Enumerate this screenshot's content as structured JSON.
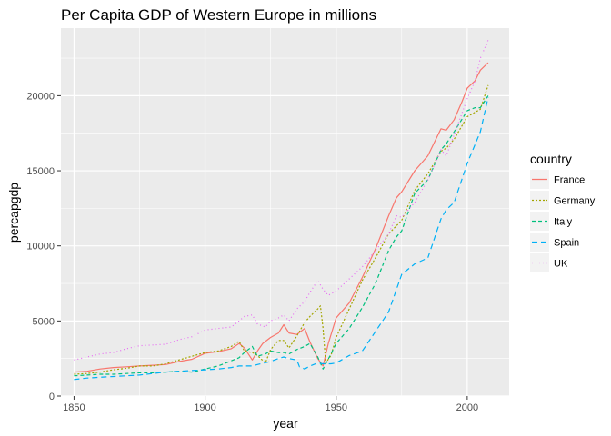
{
  "chart_data": {
    "type": "line",
    "title": "Per Capita GDP of Western Europe in millions",
    "xlabel": "year",
    "ylabel": "percapgdp",
    "xlim": [
      1845,
      2016
    ],
    "ylim": [
      0,
      24500
    ],
    "x_ticks": [
      1850,
      1900,
      1950,
      2000
    ],
    "x_tick_labels": [
      "1850",
      "1900",
      "1950",
      "2000"
    ],
    "y_ticks": [
      0,
      5000,
      10000,
      15000,
      20000
    ],
    "y_tick_labels": [
      "0",
      "5000",
      "10000",
      "15000",
      "20000"
    ],
    "grid": true,
    "legend": {
      "title": "country",
      "placement": "right"
    },
    "background": "#ebebeb",
    "series": [
      {
        "name": "France",
        "color": "#f8766d",
        "dash": "solid",
        "points": [
          [
            1850,
            1600
          ],
          [
            1855,
            1650
          ],
          [
            1860,
            1800
          ],
          [
            1865,
            1900
          ],
          [
            1870,
            1950
          ],
          [
            1875,
            2000
          ],
          [
            1880,
            2050
          ],
          [
            1885,
            2100
          ],
          [
            1890,
            2300
          ],
          [
            1895,
            2450
          ],
          [
            1900,
            2850
          ],
          [
            1905,
            2950
          ],
          [
            1910,
            3150
          ],
          [
            1913,
            3500
          ],
          [
            1915,
            3200
          ],
          [
            1918,
            2400
          ],
          [
            1920,
            3000
          ],
          [
            1922,
            3500
          ],
          [
            1925,
            3900
          ],
          [
            1928,
            4200
          ],
          [
            1930,
            4750
          ],
          [
            1932,
            4200
          ],
          [
            1935,
            4100
          ],
          [
            1938,
            4500
          ],
          [
            1940,
            3600
          ],
          [
            1943,
            2500
          ],
          [
            1945,
            2000
          ],
          [
            1947,
            3500
          ],
          [
            1950,
            5200
          ],
          [
            1955,
            6200
          ],
          [
            1960,
            7900
          ],
          [
            1965,
            9800
          ],
          [
            1970,
            12000
          ],
          [
            1973,
            13200
          ],
          [
            1975,
            13600
          ],
          [
            1980,
            15000
          ],
          [
            1985,
            16000
          ],
          [
            1990,
            17800
          ],
          [
            1992,
            17700
          ],
          [
            1995,
            18400
          ],
          [
            1998,
            19600
          ],
          [
            2000,
            20500
          ],
          [
            2003,
            21000
          ],
          [
            2005,
            21700
          ],
          [
            2008,
            22200
          ]
        ]
      },
      {
        "name": "Germany",
        "color": "#a3a500",
        "dash": "short",
        "points": [
          [
            1850,
            1450
          ],
          [
            1855,
            1500
          ],
          [
            1860,
            1600
          ],
          [
            1865,
            1750
          ],
          [
            1870,
            1850
          ],
          [
            1875,
            2000
          ],
          [
            1880,
            2000
          ],
          [
            1885,
            2150
          ],
          [
            1890,
            2400
          ],
          [
            1895,
            2650
          ],
          [
            1900,
            2900
          ],
          [
            1905,
            3000
          ],
          [
            1910,
            3300
          ],
          [
            1913,
            3650
          ],
          [
            1915,
            3000
          ],
          [
            1918,
            2900
          ],
          [
            1920,
            2700
          ],
          [
            1923,
            2200
          ],
          [
            1925,
            3100
          ],
          [
            1928,
            3700
          ],
          [
            1930,
            3700
          ],
          [
            1932,
            3200
          ],
          [
            1935,
            4000
          ],
          [
            1938,
            4900
          ],
          [
            1940,
            5300
          ],
          [
            1943,
            5800
          ],
          [
            1944,
            6000
          ],
          [
            1945,
            4500
          ],
          [
            1946,
            2200
          ],
          [
            1948,
            2700
          ],
          [
            1950,
            3900
          ],
          [
            1955,
            5800
          ],
          [
            1960,
            7700
          ],
          [
            1965,
            9200
          ],
          [
            1970,
            10800
          ],
          [
            1975,
            11700
          ],
          [
            1980,
            13700
          ],
          [
            1985,
            14800
          ],
          [
            1990,
            16300
          ],
          [
            1992,
            16500
          ],
          [
            1995,
            17100
          ],
          [
            2000,
            18600
          ],
          [
            2005,
            19100
          ],
          [
            2008,
            20700
          ]
        ]
      },
      {
        "name": "Italy",
        "color": "#00bf7d",
        "dash": "medium",
        "points": [
          [
            1850,
            1350
          ],
          [
            1855,
            1400
          ],
          [
            1860,
            1450
          ],
          [
            1865,
            1450
          ],
          [
            1870,
            1500
          ],
          [
            1875,
            1550
          ],
          [
            1880,
            1550
          ],
          [
            1885,
            1600
          ],
          [
            1890,
            1650
          ],
          [
            1895,
            1600
          ],
          [
            1900,
            1800
          ],
          [
            1905,
            2000
          ],
          [
            1910,
            2350
          ],
          [
            1913,
            2550
          ],
          [
            1915,
            2900
          ],
          [
            1918,
            3300
          ],
          [
            1920,
            2650
          ],
          [
            1923,
            2800
          ],
          [
            1925,
            3000
          ],
          [
            1928,
            2900
          ],
          [
            1930,
            2900
          ],
          [
            1932,
            2800
          ],
          [
            1935,
            3100
          ],
          [
            1938,
            3300
          ],
          [
            1940,
            3500
          ],
          [
            1943,
            2600
          ],
          [
            1945,
            1800
          ],
          [
            1948,
            2800
          ],
          [
            1950,
            3500
          ],
          [
            1955,
            4500
          ],
          [
            1960,
            5900
          ],
          [
            1965,
            7500
          ],
          [
            1970,
            9700
          ],
          [
            1973,
            10600
          ],
          [
            1975,
            11000
          ],
          [
            1980,
            13500
          ],
          [
            1985,
            14400
          ],
          [
            1990,
            16400
          ],
          [
            1992,
            16800
          ],
          [
            1995,
            17600
          ],
          [
            2000,
            19000
          ],
          [
            2003,
            19200
          ],
          [
            2005,
            19200
          ],
          [
            2008,
            20000
          ]
        ]
      },
      {
        "name": "Spain",
        "color": "#00b0f6",
        "dash": "long",
        "points": [
          [
            1850,
            1100
          ],
          [
            1855,
            1200
          ],
          [
            1860,
            1250
          ],
          [
            1865,
            1300
          ],
          [
            1870,
            1350
          ],
          [
            1875,
            1400
          ],
          [
            1880,
            1500
          ],
          [
            1885,
            1600
          ],
          [
            1890,
            1650
          ],
          [
            1895,
            1700
          ],
          [
            1900,
            1750
          ],
          [
            1905,
            1800
          ],
          [
            1910,
            1900
          ],
          [
            1913,
            2000
          ],
          [
            1918,
            2000
          ],
          [
            1920,
            2100
          ],
          [
            1925,
            2300
          ],
          [
            1928,
            2500
          ],
          [
            1930,
            2600
          ],
          [
            1932,
            2500
          ],
          [
            1935,
            2400
          ],
          [
            1936,
            1950
          ],
          [
            1938,
            1800
          ],
          [
            1940,
            2000
          ],
          [
            1943,
            2200
          ],
          [
            1945,
            2150
          ],
          [
            1948,
            2150
          ],
          [
            1950,
            2200
          ],
          [
            1955,
            2700
          ],
          [
            1960,
            3000
          ],
          [
            1965,
            4300
          ],
          [
            1970,
            5600
          ],
          [
            1975,
            8100
          ],
          [
            1980,
            8800
          ],
          [
            1985,
            9200
          ],
          [
            1990,
            11800
          ],
          [
            1992,
            12400
          ],
          [
            1995,
            12900
          ],
          [
            2000,
            15500
          ],
          [
            2005,
            17600
          ],
          [
            2008,
            19900
          ]
        ]
      },
      {
        "name": "UK",
        "color": "#e76bf3",
        "dash": "dotted",
        "points": [
          [
            1850,
            2400
          ],
          [
            1855,
            2600
          ],
          [
            1860,
            2800
          ],
          [
            1865,
            2900
          ],
          [
            1870,
            3150
          ],
          [
            1875,
            3350
          ],
          [
            1880,
            3400
          ],
          [
            1885,
            3450
          ],
          [
            1890,
            3750
          ],
          [
            1895,
            3950
          ],
          [
            1900,
            4400
          ],
          [
            1905,
            4500
          ],
          [
            1910,
            4600
          ],
          [
            1913,
            5000
          ],
          [
            1915,
            5300
          ],
          [
            1918,
            5400
          ],
          [
            1920,
            4800
          ],
          [
            1923,
            4600
          ],
          [
            1925,
            5000
          ],
          [
            1928,
            5200
          ],
          [
            1930,
            5400
          ],
          [
            1932,
            5000
          ],
          [
            1935,
            5800
          ],
          [
            1938,
            6300
          ],
          [
            1940,
            6900
          ],
          [
            1943,
            7700
          ],
          [
            1945,
            7100
          ],
          [
            1947,
            6700
          ],
          [
            1950,
            7000
          ],
          [
            1955,
            7800
          ],
          [
            1960,
            8600
          ],
          [
            1965,
            9700
          ],
          [
            1970,
            10800
          ],
          [
            1973,
            12000
          ],
          [
            1975,
            11900
          ],
          [
            1980,
            12900
          ],
          [
            1985,
            14400
          ],
          [
            1990,
            16400
          ],
          [
            1992,
            16000
          ],
          [
            1995,
            17400
          ],
          [
            2000,
            19800
          ],
          [
            2003,
            21000
          ],
          [
            2005,
            22500
          ],
          [
            2008,
            23700
          ]
        ]
      }
    ]
  }
}
